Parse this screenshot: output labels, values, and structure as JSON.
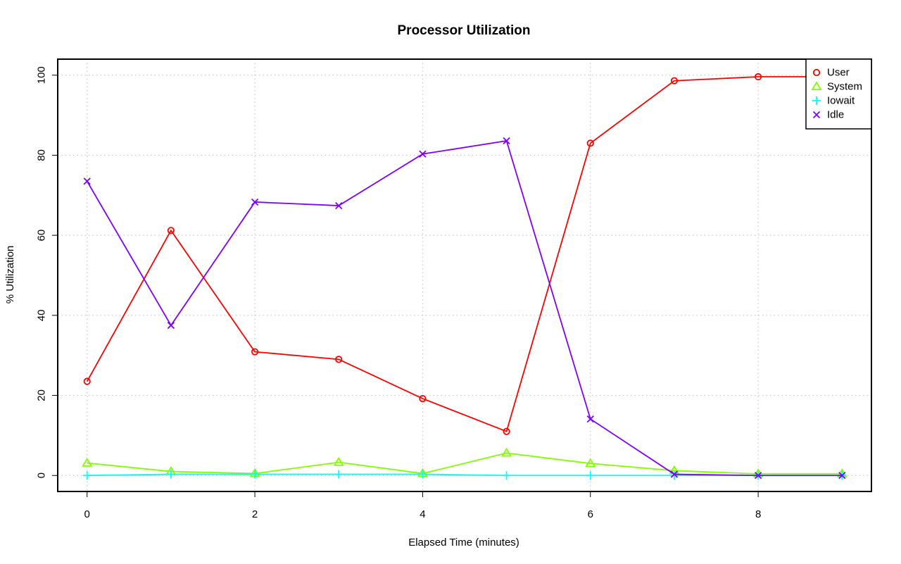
{
  "chart_data": {
    "type": "line",
    "title": "Processor Utilization",
    "xlabel": "Elapsed Time (minutes)",
    "ylabel": "% Utilization",
    "xlim": [
      -0.35,
      9.35
    ],
    "ylim": [
      -4,
      104
    ],
    "xticks": [
      0,
      2,
      4,
      6,
      8
    ],
    "yticks": [
      0,
      20,
      40,
      60,
      80,
      100
    ],
    "grid": true,
    "legend_position": "top-right",
    "x": [
      0,
      1,
      2,
      3,
      4,
      5,
      6,
      7,
      8,
      9
    ],
    "series": [
      {
        "name": "User",
        "color": "#ff0000",
        "marker": "circle",
        "values": [
          23.5,
          61.2,
          30.9,
          29.0,
          19.2,
          11.0,
          83.0,
          98.6,
          99.6,
          99.6
        ]
      },
      {
        "name": "System",
        "color": "#80ff00",
        "marker": "triangle",
        "values": [
          3.1,
          1.0,
          0.5,
          3.3,
          0.5,
          5.6,
          3.0,
          1.2,
          0.4,
          0.4
        ]
      },
      {
        "name": "Iowait",
        "color": "#00ffff",
        "marker": "plus",
        "values": [
          0.0,
          0.3,
          0.3,
          0.3,
          0.3,
          0.0,
          0.0,
          0.0,
          0.0,
          0.0
        ]
      },
      {
        "name": "Idle",
        "color": "#8000ff",
        "marker": "cross",
        "values": [
          73.5,
          37.5,
          68.3,
          67.4,
          80.3,
          83.6,
          14.1,
          0.3,
          0.0,
          0.0
        ]
      }
    ]
  }
}
